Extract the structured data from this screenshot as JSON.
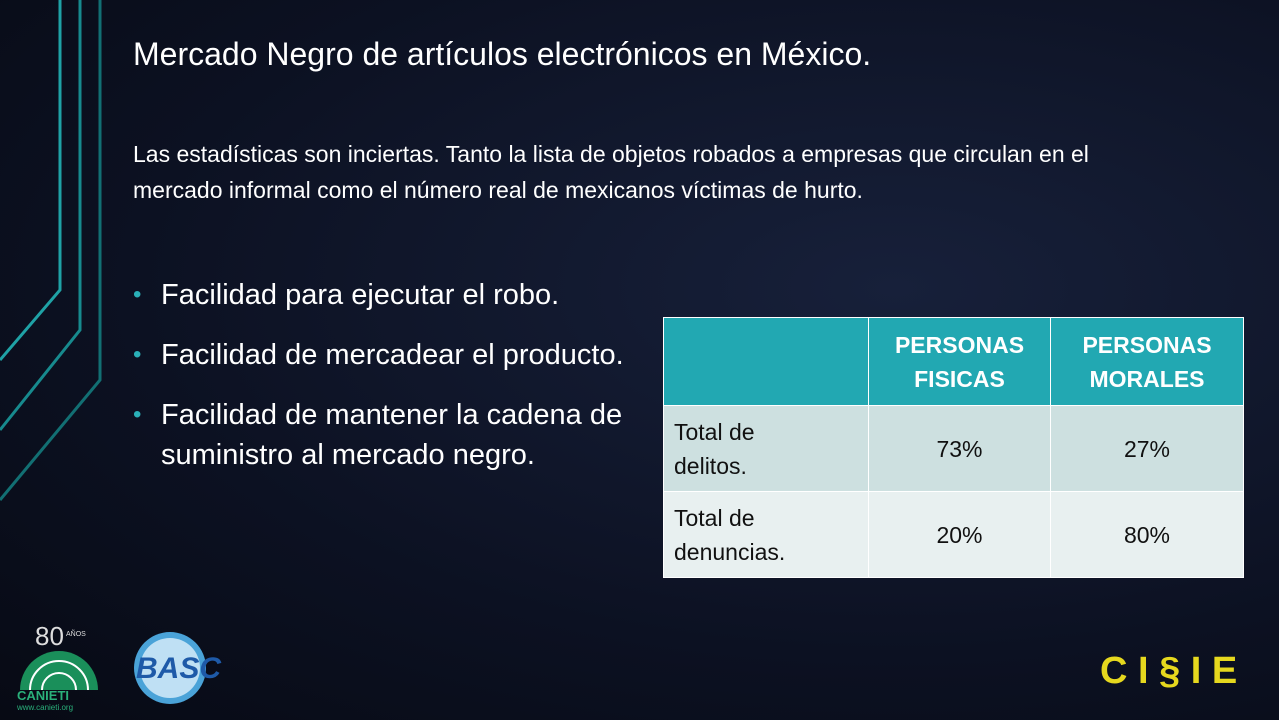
{
  "title": "Mercado Negro de artículos electrónicos en México.",
  "intro": "Las estadísticas son inciertas. Tanto la lista de objetos robados a empresas que circulan en el mercado informal como el número real de mexicanos víctimas de hurto.",
  "bullets": [
    "Facilidad para ejecutar el robo.",
    "Facilidad de mercadear el producto.",
    "Facilidad de mantener la cadena de suministro al mercado negro."
  ],
  "table": {
    "columns": [
      "PERSONAS FISICAS",
      "PERSONAS MORALES"
    ],
    "rows": [
      [
        "Total de delitos.",
        "73%",
        "27%"
      ],
      [
        "Total de denuncias.",
        "20%",
        "80%"
      ]
    ]
  },
  "logos": {
    "canieti_years": "80",
    "canieti_anos": "AÑOS",
    "canieti": "CANIETI",
    "canieti_url": "www.canieti.org",
    "basc": "BASC",
    "cisie": "C I § I E"
  }
}
